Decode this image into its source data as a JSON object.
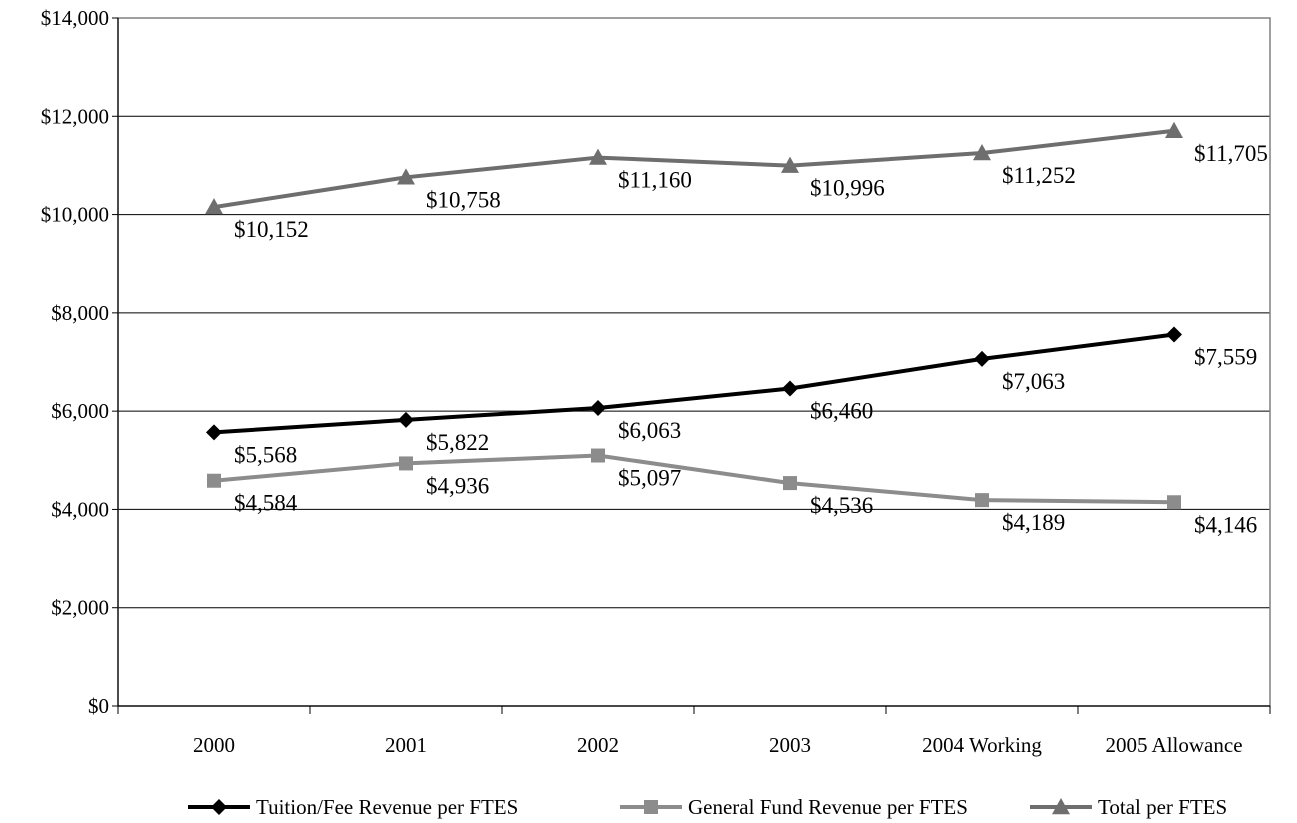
{
  "chart_data": {
    "type": "line",
    "title": "",
    "xlabel": "",
    "ylabel": "",
    "categories": [
      "2000",
      "2001",
      "2002",
      "2003",
      "2004 Working",
      "2005 Allowance"
    ],
    "ylim": [
      0,
      14000
    ],
    "y_ticks": [
      0,
      2000,
      4000,
      6000,
      8000,
      10000,
      12000,
      14000
    ],
    "y_tick_labels": [
      "$0",
      "$2,000",
      "$4,000",
      "$6,000",
      "$8,000",
      "$10,000",
      "$12,000",
      "$14,000"
    ],
    "grid": true,
    "legend_position": "bottom",
    "series": [
      {
        "name": "Tuition/Fee Revenue per FTES",
        "values": [
          5568,
          5822,
          6063,
          6460,
          7063,
          7559
        ],
        "labels": [
          "$5,568",
          "$5,822",
          "$6,063",
          "$6,460",
          "$7,063",
          "$7,559"
        ],
        "color": "#000000",
        "marker": "diamond"
      },
      {
        "name": "General Fund Revenue per FTES",
        "values": [
          4584,
          4936,
          5097,
          4536,
          4189,
          4146
        ],
        "labels": [
          "$4,584",
          "$4,936",
          "$5,097",
          "$4,536",
          "$4,189",
          "$4,146"
        ],
        "color": "#8c8c8c",
        "marker": "square"
      },
      {
        "name": "Total per FTES",
        "values": [
          10152,
          10758,
          11160,
          10996,
          11252,
          11705
        ],
        "labels": [
          "$10,152",
          "$10,758",
          "$11,160",
          "$10,996",
          "$11,252",
          "$11,705"
        ],
        "color": "#6e6e6e",
        "marker": "triangle"
      }
    ]
  }
}
